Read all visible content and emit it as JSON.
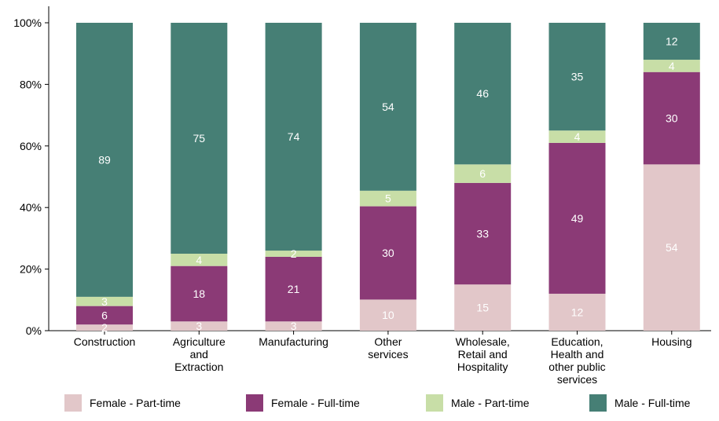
{
  "chart_data": {
    "type": "bar",
    "stacked": true,
    "categories": [
      [
        "Construction"
      ],
      [
        "Agriculture",
        "and",
        "Extraction"
      ],
      [
        "Manufacturing"
      ],
      [
        "Other",
        "services"
      ],
      [
        "Wholesale,",
        "Retail and",
        "Hospitality"
      ],
      [
        "Education,",
        "Health and",
        "other public",
        "services"
      ],
      [
        "Housing"
      ]
    ],
    "series": [
      {
        "name": "Female - Part-time",
        "color": "#e2c7c9",
        "label_color": "#ffffff",
        "values": [
          2,
          3,
          3,
          10,
          15,
          12,
          54
        ]
      },
      {
        "name": "Female - Full-time",
        "color": "#8b3a76",
        "label_color": "#ffffff",
        "values": [
          6,
          18,
          21,
          30,
          33,
          49,
          30
        ]
      },
      {
        "name": "Male - Part-time",
        "color": "#c8dea7",
        "label_color": "#ffffff",
        "values": [
          3,
          4,
          2,
          5,
          6,
          4,
          4
        ]
      },
      {
        "name": "Male - Full-time",
        "color": "#467f75",
        "label_color": "#ffffff",
        "values": [
          89,
          75,
          74,
          54,
          46,
          35,
          12
        ]
      }
    ],
    "y_ticks": [
      "0%",
      "20%",
      "40%",
      "60%",
      "80%",
      "100%"
    ],
    "ylim": [
      0,
      100
    ],
    "legend_position": "bottom",
    "grid": false
  }
}
